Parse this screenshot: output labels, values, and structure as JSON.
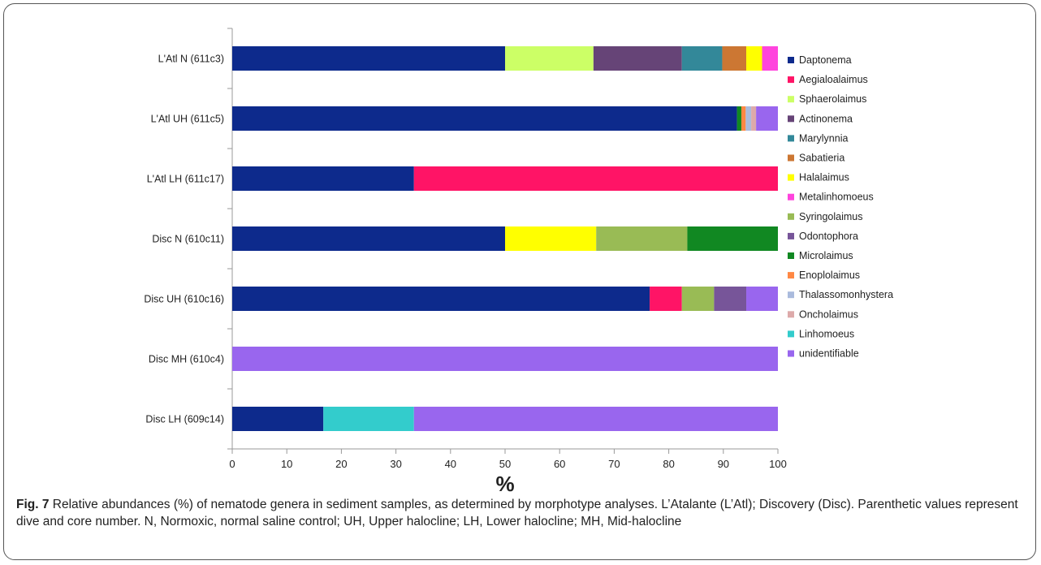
{
  "chart_data": {
    "type": "bar",
    "stacked": true,
    "orientation": "horizontal",
    "xlabel": "%",
    "xlim": [
      0,
      100
    ],
    "xticks": [
      0,
      10,
      20,
      30,
      40,
      50,
      60,
      70,
      80,
      90,
      100
    ],
    "grid": false,
    "legend_position": "right",
    "categories": [
      "L'Atl N (611c3)",
      "L'Atl UH (611c5)",
      "L'Atl LH (611c17)",
      "Disc N (610c11)",
      "Disc UH (610c16)",
      "Disc MH (610c4)",
      "Disc LH (609c14)"
    ],
    "series": [
      {
        "name": "Daptonema",
        "color": "#0d2a8c",
        "values": [
          50,
          92.5,
          33.3,
          50,
          76.5,
          0,
          16.7
        ]
      },
      {
        "name": "Aegialoalaimus",
        "color": "#ff1466",
        "values": [
          0,
          0,
          66.7,
          0,
          5.9,
          0,
          0
        ]
      },
      {
        "name": "Sphaerolaimus",
        "color": "#ccff66",
        "values": [
          16.2,
          0,
          0,
          0,
          0,
          0,
          0
        ]
      },
      {
        "name": "Actinonema",
        "color": "#664477",
        "values": [
          16.2,
          0,
          0,
          0,
          0,
          0,
          0
        ]
      },
      {
        "name": "Marylynnia",
        "color": "#338899",
        "values": [
          7.4,
          0,
          0,
          0,
          0,
          0,
          0
        ]
      },
      {
        "name": "Sabatieria",
        "color": "#cc7733",
        "values": [
          4.4,
          0,
          0,
          0,
          0,
          0,
          0
        ]
      },
      {
        "name": "Halalaimus",
        "color": "#ffff00",
        "values": [
          2.9,
          0,
          0,
          16.7,
          0,
          0,
          0
        ]
      },
      {
        "name": "Metalinhomoeus",
        "color": "#ff44dd",
        "values": [
          2.9,
          0,
          0,
          0,
          0,
          0,
          0
        ]
      },
      {
        "name": "Syringolaimus",
        "color": "#99bb55",
        "values": [
          0,
          0,
          0,
          16.7,
          5.9,
          0,
          0
        ]
      },
      {
        "name": "Odontophora",
        "color": "#775599",
        "values": [
          0,
          0,
          0,
          0,
          5.9,
          0,
          0
        ]
      },
      {
        "name": "Microlaimus",
        "color": "#118822",
        "values": [
          0,
          0.8,
          0,
          16.6,
          0,
          0,
          0
        ]
      },
      {
        "name": "Enoplolaimus",
        "color": "#ff8844",
        "values": [
          0,
          0.8,
          0,
          0,
          0,
          0,
          0
        ]
      },
      {
        "name": "Thalassomonhystera",
        "color": "#aabbdd",
        "values": [
          0,
          1.0,
          0,
          0,
          0,
          0,
          0
        ]
      },
      {
        "name": "Oncholaimus",
        "color": "#ddaaaa",
        "values": [
          0,
          0.9,
          0,
          0,
          0,
          0,
          0
        ]
      },
      {
        "name": "Linhomoeus",
        "color": "#33cccc",
        "values": [
          0,
          0,
          0,
          0,
          0,
          0,
          16.6
        ]
      },
      {
        "name": "unidentifiable",
        "color": "#9966ee",
        "values": [
          0,
          4.0,
          0,
          0,
          5.8,
          100,
          66.7
        ]
      }
    ]
  },
  "caption": {
    "label": "Fig. 7",
    "text": " Relative abundances (%) of nematode genera in sediment samples, as determined by morphotype analyses. L’Atalante (L’Atl); Discovery (Disc). Parenthetic values represent dive and core number. N, Normoxic, normal saline control; UH, Upper halocline; LH, Lower halocline; MH, Mid-halocline"
  }
}
